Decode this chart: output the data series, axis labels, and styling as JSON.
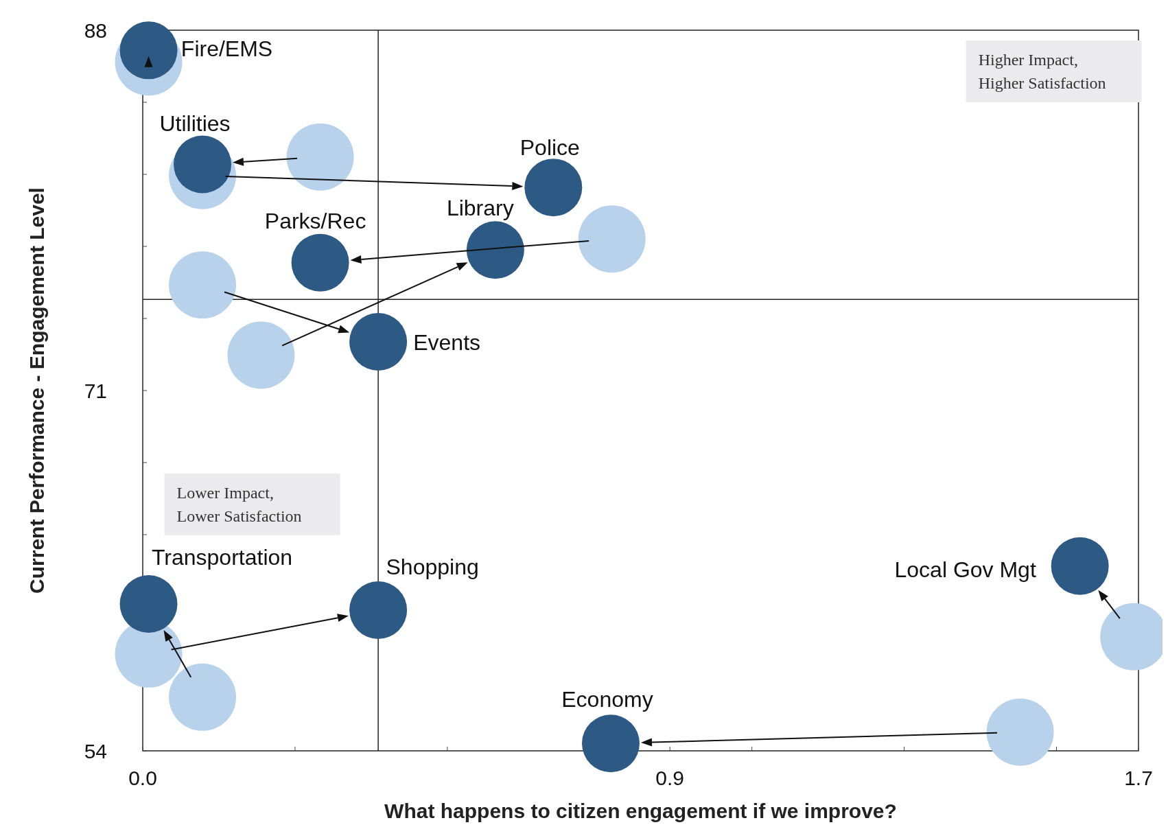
{
  "chart_data": {
    "type": "scatter",
    "xlabel": "What happens to citizen engagement if we improve?",
    "ylabel": "Current Performance - Engagement Level",
    "xlim": [
      0,
      1.7
    ],
    "ylim": [
      54,
      88
    ],
    "xticks": [
      {
        "value": 0,
        "label": "0.0"
      },
      {
        "value": 0.26,
        "label": null
      },
      {
        "value": 0.52,
        "label": null
      },
      {
        "value": 0.78,
        "label": null
      },
      {
        "value": 0.9,
        "label": "0.9"
      },
      {
        "value": 1.04,
        "label": null
      },
      {
        "value": 1.3,
        "label": null
      },
      {
        "value": 1.56,
        "label": null
      },
      1.7
    ],
    "yticks": [
      54,
      {
        "value": 57.4,
        "label": null
      },
      {
        "value": 60.8,
        "label": null
      },
      {
        "value": 64.2,
        "label": null
      },
      {
        "value": 67.6,
        "label": null
      },
      71,
      {
        "value": 74.4,
        "label": null
      },
      {
        "value": 77.8,
        "label": null
      },
      {
        "value": 81.2,
        "label": null
      },
      {
        "value": 84.6,
        "label": null
      },
      88
    ],
    "grid": false,
    "marker": "circle",
    "series": [
      {
        "color": "#b9d2ec",
        "x": [
          0.01,
          0.303,
          0.102,
          0.801,
          0.202,
          0.102,
          0.102,
          0.01,
          1.692,
          1.498
        ],
        "values": [
          86.5,
          82.02,
          81.14,
          78.15,
          72.67,
          75.98,
          56.53,
          58.57,
          59.38,
          54.88
        ]
      },
      {
        "color": "#2c5a85",
        "x": [
          0.01,
          0.102,
          0.701,
          0.303,
          0.602,
          0.402,
          0.01,
          0.402,
          1.6,
          0.799
        ],
        "values": [
          87.05,
          81.67,
          80.58,
          77.03,
          77.63,
          73.3,
          60.93,
          60.64,
          62.72,
          54.35
        ]
      }
    ],
    "ref_lines": [
      {
        "axis": "x",
        "value": 0.402
      },
      {
        "axis": "y",
        "value": 75.3
      }
    ],
    "annotations": [
      {
        "text": "Fire/EMS",
        "x": 0.01,
        "y": 87.05
      },
      {
        "text": "Utilities",
        "x": 0.102,
        "y": 81.67
      },
      {
        "text": "Police",
        "x": 0.701,
        "y": 80.58
      },
      {
        "text": "Parks/Rec",
        "x": 0.303,
        "y": 77.03
      },
      {
        "text": "Library",
        "x": 0.602,
        "y": 77.63
      },
      {
        "text": "Events",
        "x": 0.402,
        "y": 73.3
      },
      {
        "text": "Transportation",
        "x": 0.01,
        "y": 60.93
      },
      {
        "text": "Shopping",
        "x": 0.402,
        "y": 60.64
      },
      {
        "text": "Local Gov Mgt",
        "x": 1.6,
        "y": 62.72
      },
      {
        "text": "Economy",
        "x": 0.799,
        "y": 54.35
      },
      "Higher Impact,\nHigher Satisfaction",
      "Lower Impact,\nLower Satisfaction"
    ]
  }
}
